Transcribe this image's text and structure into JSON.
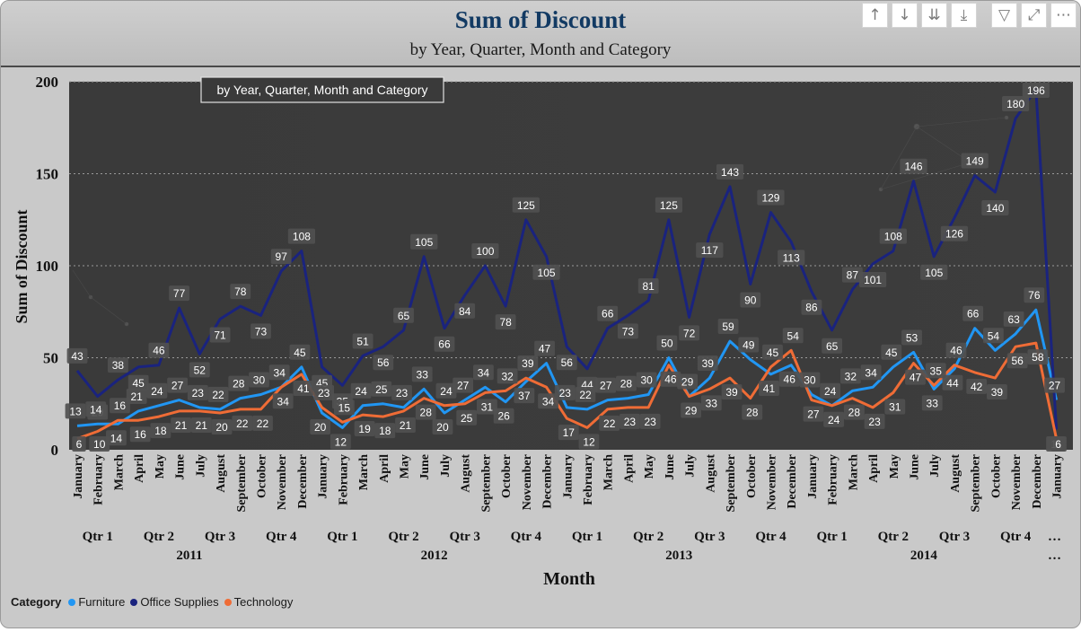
{
  "title": "Sum of Discount",
  "subtitle": "by Year, Quarter, Month and Category",
  "tooltip": "by Year, Quarter, Month and Category",
  "toolbar": {
    "icons": [
      "arrow-up-icon",
      "arrow-down-icon",
      "double-arrow-down-icon",
      "expand-hierarchy-icon",
      "filter-icon",
      "focus-mode-icon",
      "more-options-icon"
    ],
    "glyphs": [
      "↑",
      "↓",
      "⇊",
      "⤓",
      "▽",
      "⤢",
      "⋯"
    ]
  },
  "legend": {
    "title": "Category"
  },
  "chart_data": {
    "type": "line",
    "title": "Sum of Discount",
    "subtitle": "by Year, Quarter, Month and Category",
    "xlabel": "Month",
    "ylabel": "Sum of Discount",
    "ylim": [
      0,
      200
    ],
    "yticks": [
      0,
      50,
      100,
      150,
      200
    ],
    "grid": true,
    "legend_position": "bottom-left",
    "x": [
      "January",
      "February",
      "March",
      "April",
      "May",
      "June",
      "July",
      "August",
      "September",
      "October",
      "November",
      "December",
      "January",
      "February",
      "March",
      "April",
      "May",
      "June",
      "July",
      "August",
      "September",
      "October",
      "November",
      "December",
      "January",
      "February",
      "March",
      "April",
      "May",
      "June",
      "July",
      "August",
      "September",
      "October",
      "November",
      "December",
      "January",
      "February",
      "March",
      "April",
      "May",
      "June",
      "July",
      "August",
      "September",
      "October",
      "November",
      "December",
      "January"
    ],
    "quarters": [
      "Qtr 1",
      "Qtr 2",
      "Qtr 3",
      "Qtr 4",
      "Qtr 1",
      "Qtr 2",
      "Qtr 3",
      "Qtr 4",
      "Qtr 1",
      "Qtr 2",
      "Qtr 3",
      "Qtr 4",
      "Qtr 1",
      "Qtr 2",
      "Qtr 3",
      "Qtr 4",
      "…"
    ],
    "years": [
      "2011",
      "2012",
      "2013",
      "2014",
      "…"
    ],
    "series": [
      {
        "name": "Furniture",
        "color": "#2196f3",
        "values": [
          13,
          14,
          14,
          21,
          24,
          27,
          23,
          22,
          28,
          30,
          34,
          45,
          20,
          12,
          24,
          25,
          23,
          33,
          20,
          27,
          34,
          26,
          37,
          47,
          23,
          22,
          27,
          28,
          30,
          50,
          29,
          39,
          59,
          49,
          41,
          46,
          30,
          24,
          32,
          34,
          45,
          53,
          33,
          44,
          66,
          54,
          63,
          76,
          27
        ]
      },
      {
        "name": "Office Supplies",
        "color": "#1a237e",
        "values": [
          43,
          29,
          38,
          45,
          46,
          77,
          52,
          71,
          78,
          73,
          97,
          108,
          45,
          35,
          51,
          56,
          65,
          105,
          66,
          84,
          100,
          78,
          125,
          105,
          56,
          44,
          66,
          73,
          81,
          125,
          72,
          117,
          143,
          90,
          129,
          113,
          86,
          65,
          87,
          101,
          108,
          146,
          105,
          126,
          149,
          140,
          180,
          196,
          11
        ]
      },
      {
        "name": "Technology",
        "color": "#ef6c36",
        "values": [
          6,
          10,
          16,
          16,
          18,
          21,
          21,
          20,
          22,
          22,
          34,
          41,
          23,
          15,
          19,
          18,
          21,
          28,
          24,
          25,
          31,
          32,
          39,
          34,
          17,
          12,
          22,
          23,
          23,
          46,
          29,
          33,
          39,
          28,
          45,
          54,
          27,
          24,
          28,
          23,
          31,
          47,
          35,
          46,
          42,
          39,
          56,
          58,
          6
        ]
      }
    ]
  }
}
